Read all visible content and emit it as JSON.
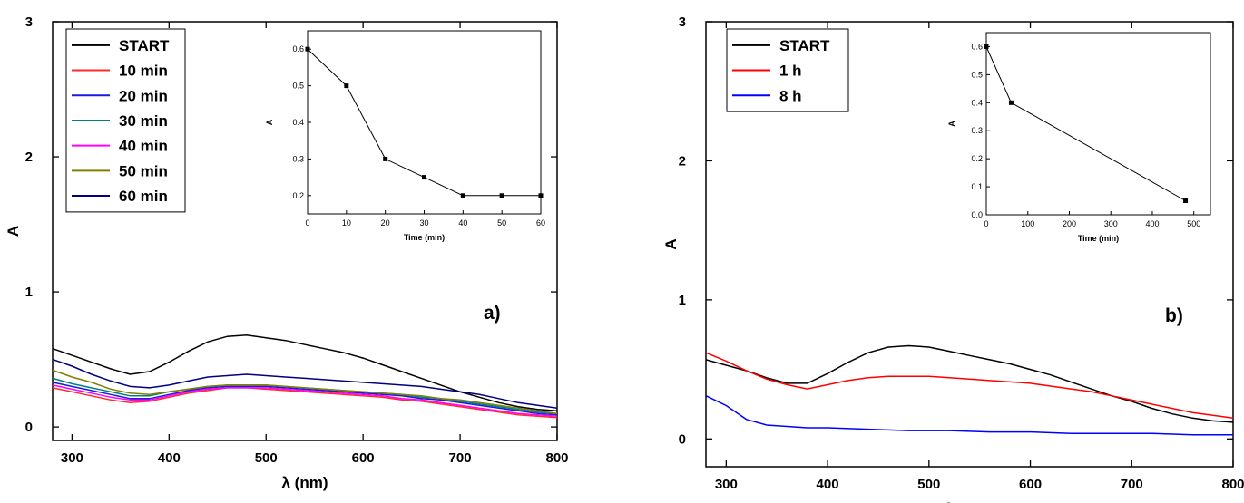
{
  "chart_data": [
    {
      "type": "line",
      "panel_label": "a)",
      "xlabel": "λ (nm)",
      "ylabel": "A",
      "xlim": [
        280,
        800
      ],
      "ylim": [
        -0.1,
        3
      ],
      "xticks": [
        300,
        400,
        500,
        600,
        700,
        800
      ],
      "yticks": [
        0,
        1,
        2,
        3
      ],
      "legend_position": "top-left",
      "series": [
        {
          "name": "START",
          "color": "#000000",
          "x": [
            280,
            300,
            320,
            340,
            360,
            380,
            400,
            420,
            440,
            460,
            480,
            500,
            520,
            540,
            560,
            580,
            600,
            620,
            640,
            660,
            680,
            700,
            720,
            740,
            760,
            780,
            800
          ],
          "y": [
            0.58,
            0.53,
            0.48,
            0.43,
            0.39,
            0.41,
            0.48,
            0.56,
            0.63,
            0.67,
            0.68,
            0.66,
            0.64,
            0.61,
            0.58,
            0.55,
            0.51,
            0.46,
            0.41,
            0.36,
            0.31,
            0.26,
            0.22,
            0.18,
            0.15,
            0.13,
            0.12
          ]
        },
        {
          "name": "10 min",
          "color": "#ff2a2a",
          "x": [
            280,
            300,
            320,
            340,
            360,
            380,
            400,
            420,
            440,
            460,
            480,
            500,
            520,
            540,
            560,
            580,
            600,
            620,
            640,
            660,
            680,
            700,
            720,
            740,
            760,
            780,
            800
          ],
          "y": [
            0.29,
            0.26,
            0.23,
            0.2,
            0.18,
            0.19,
            0.22,
            0.25,
            0.27,
            0.29,
            0.29,
            0.28,
            0.27,
            0.26,
            0.25,
            0.24,
            0.23,
            0.22,
            0.2,
            0.19,
            0.17,
            0.15,
            0.13,
            0.11,
            0.09,
            0.08,
            0.07
          ]
        },
        {
          "name": "20 min",
          "color": "#1a1ae0",
          "x": [
            280,
            300,
            320,
            340,
            360,
            380,
            400,
            420,
            440,
            460,
            480,
            500,
            520,
            540,
            560,
            580,
            600,
            620,
            640,
            660,
            680,
            700,
            720,
            740,
            760,
            780,
            800
          ],
          "y": [
            0.33,
            0.3,
            0.27,
            0.24,
            0.21,
            0.21,
            0.24,
            0.27,
            0.29,
            0.3,
            0.3,
            0.3,
            0.29,
            0.28,
            0.27,
            0.26,
            0.25,
            0.24,
            0.23,
            0.21,
            0.2,
            0.18,
            0.16,
            0.14,
            0.12,
            0.1,
            0.09
          ]
        },
        {
          "name": "30 min",
          "color": "#008080",
          "x": [
            280,
            300,
            320,
            340,
            360,
            380,
            400,
            420,
            440,
            460,
            480,
            500,
            520,
            540,
            560,
            580,
            600,
            620,
            640,
            660,
            680,
            700,
            720,
            740,
            760,
            780,
            800
          ],
          "y": [
            0.36,
            0.32,
            0.29,
            0.26,
            0.23,
            0.23,
            0.26,
            0.28,
            0.3,
            0.31,
            0.31,
            0.31,
            0.3,
            0.29,
            0.28,
            0.27,
            0.26,
            0.25,
            0.24,
            0.22,
            0.21,
            0.19,
            0.17,
            0.15,
            0.13,
            0.11,
            0.1
          ]
        },
        {
          "name": "40 min",
          "color": "#ff00ff",
          "x": [
            280,
            300,
            320,
            340,
            360,
            380,
            400,
            420,
            440,
            460,
            480,
            500,
            520,
            540,
            560,
            580,
            600,
            620,
            640,
            660,
            680,
            700,
            720,
            740,
            760,
            780,
            800
          ],
          "y": [
            0.31,
            0.28,
            0.25,
            0.22,
            0.2,
            0.2,
            0.23,
            0.26,
            0.28,
            0.29,
            0.29,
            0.29,
            0.28,
            0.27,
            0.26,
            0.25,
            0.24,
            0.23,
            0.21,
            0.2,
            0.18,
            0.16,
            0.14,
            0.12,
            0.1,
            0.09,
            0.08
          ]
        },
        {
          "name": "50 min",
          "color": "#808000",
          "x": [
            280,
            300,
            320,
            340,
            360,
            380,
            400,
            420,
            440,
            460,
            480,
            500,
            520,
            540,
            560,
            580,
            600,
            620,
            640,
            660,
            680,
            700,
            720,
            740,
            760,
            780,
            800
          ],
          "y": [
            0.42,
            0.37,
            0.33,
            0.28,
            0.25,
            0.24,
            0.26,
            0.28,
            0.3,
            0.31,
            0.31,
            0.31,
            0.3,
            0.29,
            0.28,
            0.27,
            0.26,
            0.25,
            0.24,
            0.23,
            0.21,
            0.2,
            0.18,
            0.16,
            0.14,
            0.12,
            0.1
          ]
        },
        {
          "name": "60 min",
          "color": "#000080",
          "x": [
            280,
            300,
            320,
            340,
            360,
            380,
            400,
            420,
            440,
            460,
            480,
            500,
            520,
            540,
            560,
            580,
            600,
            620,
            640,
            660,
            680,
            700,
            720,
            740,
            760,
            780,
            800
          ],
          "y": [
            0.5,
            0.45,
            0.39,
            0.34,
            0.3,
            0.29,
            0.31,
            0.34,
            0.37,
            0.38,
            0.39,
            0.38,
            0.37,
            0.36,
            0.35,
            0.34,
            0.33,
            0.32,
            0.31,
            0.3,
            0.28,
            0.26,
            0.24,
            0.21,
            0.18,
            0.16,
            0.14
          ]
        }
      ]
    },
    {
      "type": "line",
      "inset_of": "a)",
      "xlabel": "Time (min)",
      "ylabel": "A",
      "xlim": [
        0,
        60
      ],
      "ylim": [
        0.15,
        0.65
      ],
      "xticks": [
        0,
        10,
        20,
        30,
        40,
        50,
        60
      ],
      "yticks": [
        0.2,
        0.3,
        0.4,
        0.5,
        0.6
      ],
      "x": [
        0,
        10,
        20,
        30,
        40,
        50,
        60
      ],
      "y": [
        0.6,
        0.5,
        0.3,
        0.25,
        0.2,
        0.2,
        0.2
      ]
    },
    {
      "type": "line",
      "panel_label": "b)",
      "xlabel": "λ (nm)",
      "ylabel": "A",
      "xlim": [
        280,
        800
      ],
      "ylim": [
        -0.2,
        3
      ],
      "xticks": [
        300,
        400,
        500,
        600,
        700,
        800
      ],
      "yticks": [
        0,
        1,
        2,
        3
      ],
      "legend_position": "top-left",
      "series": [
        {
          "name": "START",
          "color": "#000000",
          "x": [
            280,
            300,
            320,
            340,
            360,
            380,
            400,
            420,
            440,
            460,
            480,
            500,
            520,
            540,
            560,
            580,
            600,
            620,
            640,
            660,
            680,
            700,
            720,
            740,
            760,
            780,
            800
          ],
          "y": [
            0.57,
            0.53,
            0.49,
            0.44,
            0.4,
            0.4,
            0.47,
            0.55,
            0.62,
            0.66,
            0.67,
            0.66,
            0.63,
            0.6,
            0.57,
            0.54,
            0.5,
            0.46,
            0.41,
            0.36,
            0.31,
            0.27,
            0.22,
            0.18,
            0.15,
            0.13,
            0.12
          ]
        },
        {
          "name": "1 h",
          "color": "#ff0000",
          "x": [
            280,
            300,
            320,
            340,
            360,
            380,
            400,
            420,
            440,
            460,
            480,
            500,
            520,
            540,
            560,
            580,
            600,
            620,
            640,
            660,
            680,
            700,
            720,
            740,
            760,
            780,
            800
          ],
          "y": [
            0.62,
            0.56,
            0.49,
            0.43,
            0.39,
            0.36,
            0.39,
            0.42,
            0.44,
            0.45,
            0.45,
            0.45,
            0.44,
            0.43,
            0.42,
            0.41,
            0.4,
            0.38,
            0.36,
            0.34,
            0.31,
            0.28,
            0.25,
            0.22,
            0.19,
            0.17,
            0.15
          ]
        },
        {
          "name": "8 h",
          "color": "#0000ff",
          "x": [
            280,
            300,
            320,
            340,
            360,
            380,
            400,
            440,
            480,
            520,
            560,
            600,
            640,
            680,
            720,
            760,
            800
          ],
          "y": [
            0.31,
            0.24,
            0.14,
            0.1,
            0.09,
            0.08,
            0.08,
            0.07,
            0.06,
            0.06,
            0.05,
            0.05,
            0.04,
            0.04,
            0.04,
            0.03,
            0.03
          ]
        }
      ]
    },
    {
      "type": "line",
      "inset_of": "b)",
      "xlabel": "Time (min)",
      "ylabel": "A",
      "xlim": [
        0,
        540
      ],
      "ylim": [
        0,
        0.65
      ],
      "xticks": [
        0,
        100,
        200,
        300,
        400,
        500
      ],
      "yticks": [
        0.0,
        0.1,
        0.2,
        0.3,
        0.4,
        0.5,
        0.6
      ],
      "x": [
        0,
        60,
        480
      ],
      "y": [
        0.6,
        0.4,
        0.05
      ]
    }
  ]
}
